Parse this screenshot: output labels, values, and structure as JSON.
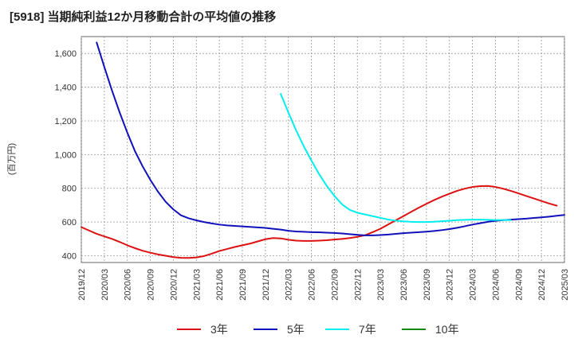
{
  "chart_data": {
    "type": "line",
    "title": "[5918]  当期純利益12か月移動合計の平均値の推移",
    "ylabel": "(百万円)",
    "xlabel": "",
    "ylim": [
      360,
      1700
    ],
    "yticks": [
      400,
      600,
      800,
      1000,
      1200,
      1400,
      1600
    ],
    "ytick_labels": [
      "400",
      "600",
      "800",
      "1,000",
      "1,200",
      "1,400",
      "1,600"
    ],
    "x_start": "2019-12",
    "x_end": "2025-03",
    "xtick_labels": [
      "2019/12",
      "2020/03",
      "2020/06",
      "2020/09",
      "2020/12",
      "2021/03",
      "2021/06",
      "2021/09",
      "2021/12",
      "2022/03",
      "2022/06",
      "2022/09",
      "2022/12",
      "2023/03",
      "2023/06",
      "2023/09",
      "2023/12",
      "2024/03",
      "2024/06",
      "2024/09",
      "2024/12",
      "2025/03"
    ],
    "grid": true,
    "legend_position": "bottom",
    "series": [
      {
        "name": "3年",
        "color": "#dd1111",
        "start": "2019-12",
        "values": [
          570,
          550,
          530,
          515,
          500,
          482,
          462,
          445,
          430,
          418,
          408,
          400,
          392,
          388,
          387,
          390,
          398,
          412,
          428,
          440,
          452,
          462,
          472,
          485,
          498,
          505,
          503,
          495,
          490,
          488,
          488,
          490,
          492,
          496,
          500,
          505,
          512,
          522,
          540,
          560,
          585,
          610,
          635,
          660,
          685,
          708,
          730,
          750,
          768,
          785,
          798,
          808,
          813,
          814,
          808,
          798,
          785,
          770,
          755,
          740,
          725,
          710,
          697
        ]
      },
      {
        "name": "5年",
        "color": "#1111bb",
        "start": "2020-02",
        "values": [
          1665,
          1520,
          1380,
          1250,
          1130,
          1020,
          930,
          850,
          780,
          720,
          675,
          640,
          622,
          610,
          600,
          592,
          585,
          580,
          577,
          574,
          571,
          568,
          565,
          560,
          555,
          548,
          544,
          542,
          540,
          539,
          537,
          535,
          532,
          528,
          524,
          521,
          521,
          523,
          526,
          530,
          534,
          537,
          540,
          543,
          547,
          552,
          558,
          566,
          575,
          585,
          593,
          601,
          607,
          611,
          614,
          617,
          620,
          624,
          628,
          632,
          637,
          642
        ]
      },
      {
        "name": "7年",
        "color": "#00eeee",
        "start": "2022-02",
        "values": [
          1360,
          1250,
          1145,
          1050,
          965,
          885,
          815,
          755,
          705,
          672,
          655,
          645,
          635,
          625,
          615,
          608,
          604,
          601,
          600,
          600,
          602,
          605,
          608,
          611,
          613,
          614,
          614,
          613,
          612,
          612,
          611
        ]
      },
      {
        "name": "10年",
        "color": "#118811",
        "start": "2025-03",
        "values": []
      }
    ]
  }
}
